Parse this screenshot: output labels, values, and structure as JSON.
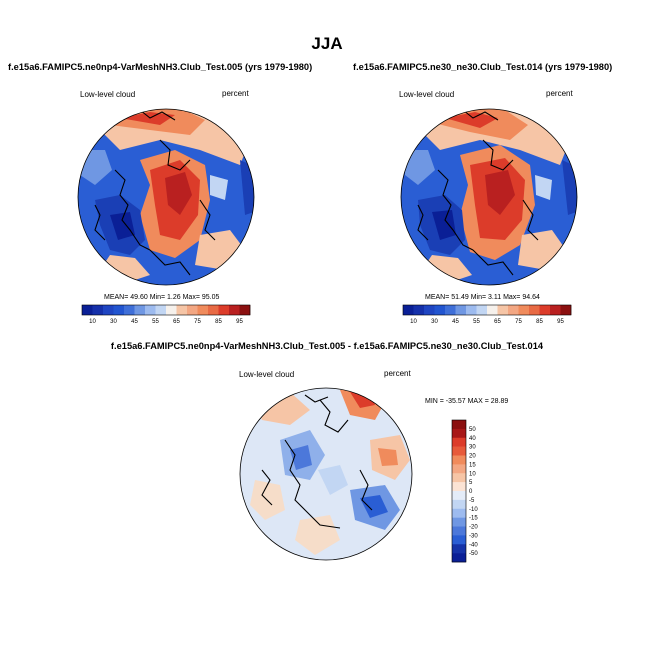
{
  "title": "JJA",
  "colors": {
    "deep_blue": "#0a1f96",
    "blue": "#2255d0",
    "mid_blue": "#6f97e3",
    "light_blue": "#c2d6f3",
    "near_white": "#f6f1ec",
    "light_orange": "#f6c5a6",
    "orange": "#f08b5c",
    "red": "#dc3c2a",
    "dark_red": "#8b1010"
  },
  "panels": {
    "left": {
      "title": "f.e15a6.FAMIPC5.ne0np4-VarMeshNH3.Club_Test.005 (yrs 1979-1980)",
      "variable": "Low-level cloud",
      "units": "percent",
      "stats_text": "MEAN=  49.60  Min=   1.26  Max=  95.05",
      "colorbar_labels": [
        "10",
        "30",
        "45",
        "55",
        "65",
        "75",
        "85",
        "95"
      ]
    },
    "right": {
      "title": "f.e15a6.FAMIPC5.ne30_ne30.Club_Test.014 (yrs 1979-1980)",
      "variable": "Low-level cloud",
      "units": "percent",
      "stats_text": "MEAN=  51.49  Min=   3.11  Max=  94.64",
      "colorbar_labels": [
        "10",
        "30",
        "45",
        "55",
        "65",
        "75",
        "85",
        "95"
      ]
    },
    "diff": {
      "title": "f.e15a6.FAMIPC5.ne0np4-VarMeshNH3.Club_Test.005 - f.e15a6.FAMIPC5.ne30_ne30.Club_Test.014",
      "variable": "Low-level cloud",
      "units": "percent",
      "stats_text": "MIN = -35.57 MAX =  28.89",
      "colorbar_labels": [
        "50",
        "40",
        "30",
        "20",
        "15",
        "10",
        "5",
        "0",
        "-5",
        "-10",
        "-15",
        "-20",
        "-30",
        "-40",
        "-50"
      ]
    }
  }
}
